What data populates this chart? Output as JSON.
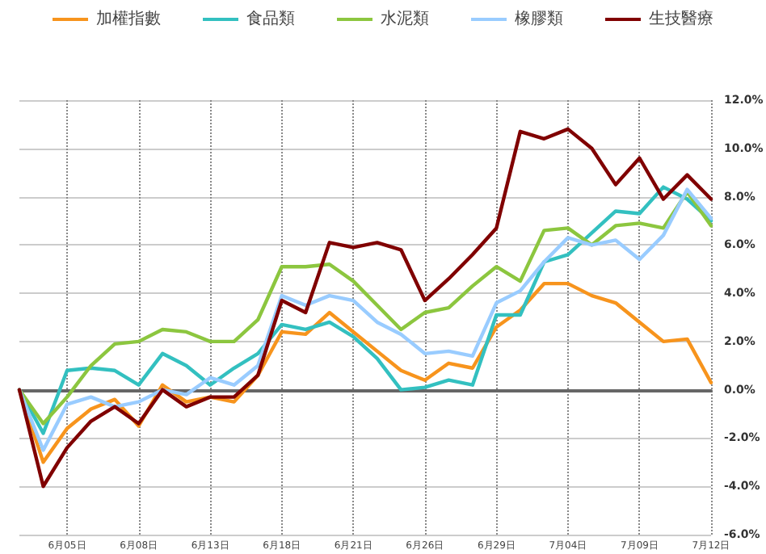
{
  "chart_data": {
    "type": "line",
    "categories": [
      null,
      null,
      "6月05日",
      null,
      null,
      "6月08日",
      null,
      null,
      "6月13日",
      null,
      null,
      "6月18日",
      null,
      null,
      "6月21日",
      null,
      null,
      "6月26日",
      null,
      null,
      "6月29日",
      null,
      null,
      "7月04日",
      null,
      null,
      "7月09日",
      null,
      null,
      "7月12日"
    ],
    "series": [
      {
        "name": "加權指數",
        "color": "#f7941d",
        "values": [
          0,
          -3.0,
          -1.6,
          -0.8,
          -0.4,
          -1.5,
          0.2,
          -0.5,
          -0.3,
          -0.5,
          0.6,
          2.4,
          2.3,
          3.2,
          2.4,
          1.6,
          0.8,
          0.4,
          1.1,
          0.9,
          2.6,
          3.3,
          4.4,
          4.4,
          3.9,
          3.6,
          2.8,
          2.0,
          2.1,
          0.3
        ]
      },
      {
        "name": "食品類",
        "color": "#33c0c0",
        "values": [
          0,
          -1.8,
          0.8,
          0.9,
          0.8,
          0.2,
          1.5,
          1.0,
          0.2,
          0.9,
          1.5,
          2.7,
          2.5,
          2.8,
          2.2,
          1.3,
          0,
          0.1,
          0.4,
          0.2,
          3.1,
          3.1,
          5.3,
          5.6,
          6.5,
          7.4,
          7.3,
          8.4,
          7.9,
          7.0
        ]
      },
      {
        "name": "水泥類",
        "color": "#8cc63f",
        "values": [
          0,
          -1.4,
          -0.3,
          1.0,
          1.9,
          2.0,
          2.5,
          2.4,
          2.0,
          2.0,
          2.9,
          5.1,
          5.1,
          5.2,
          4.5,
          3.5,
          2.5,
          3.2,
          3.4,
          4.3,
          5.1,
          4.5,
          6.6,
          6.7,
          6.0,
          6.8,
          6.9,
          6.7,
          8.2,
          6.8
        ]
      },
      {
        "name": "橡膠類",
        "color": "#99ccff",
        "values": [
          0,
          -2.5,
          -0.6,
          -0.3,
          -0.7,
          -0.5,
          0,
          -0.2,
          0.5,
          0.2,
          1.0,
          3.9,
          3.5,
          3.9,
          3.7,
          2.8,
          2.3,
          1.5,
          1.6,
          1.4,
          3.6,
          4.1,
          5.3,
          6.3,
          6.0,
          6.2,
          5.4,
          6.4,
          8.3,
          7.1
        ]
      },
      {
        "name": "生技醫療",
        "color": "#800000",
        "values": [
          0,
          -4.0,
          -2.4,
          -1.3,
          -0.7,
          -1.4,
          0,
          -0.7,
          -0.3,
          -0.3,
          0.6,
          3.7,
          3.2,
          6.1,
          5.9,
          6.1,
          5.8,
          3.7,
          4.6,
          5.6,
          6.7,
          10.7,
          10.4,
          10.8,
          10.0,
          8.5,
          9.6,
          7.9,
          8.9,
          7.9
        ]
      }
    ],
    "ylim": [
      -6,
      12
    ],
    "yticks": [
      {
        "value": -6,
        "label": "-6.0%"
      },
      {
        "value": -4,
        "label": "-4.0%"
      },
      {
        "value": -2,
        "label": "-2.0%"
      },
      {
        "value": 0,
        "label": "0.0%"
      },
      {
        "value": 2,
        "label": "2.0%"
      },
      {
        "value": 4,
        "label": "4.0%"
      },
      {
        "value": 6,
        "label": "6.0%"
      },
      {
        "value": 8,
        "label": "8.0%"
      },
      {
        "value": 10,
        "label": "10.0%"
      },
      {
        "value": 12,
        "label": "12.0%"
      }
    ],
    "grid": true,
    "legend": "top",
    "marker": "none",
    "line_style": "solid"
  }
}
